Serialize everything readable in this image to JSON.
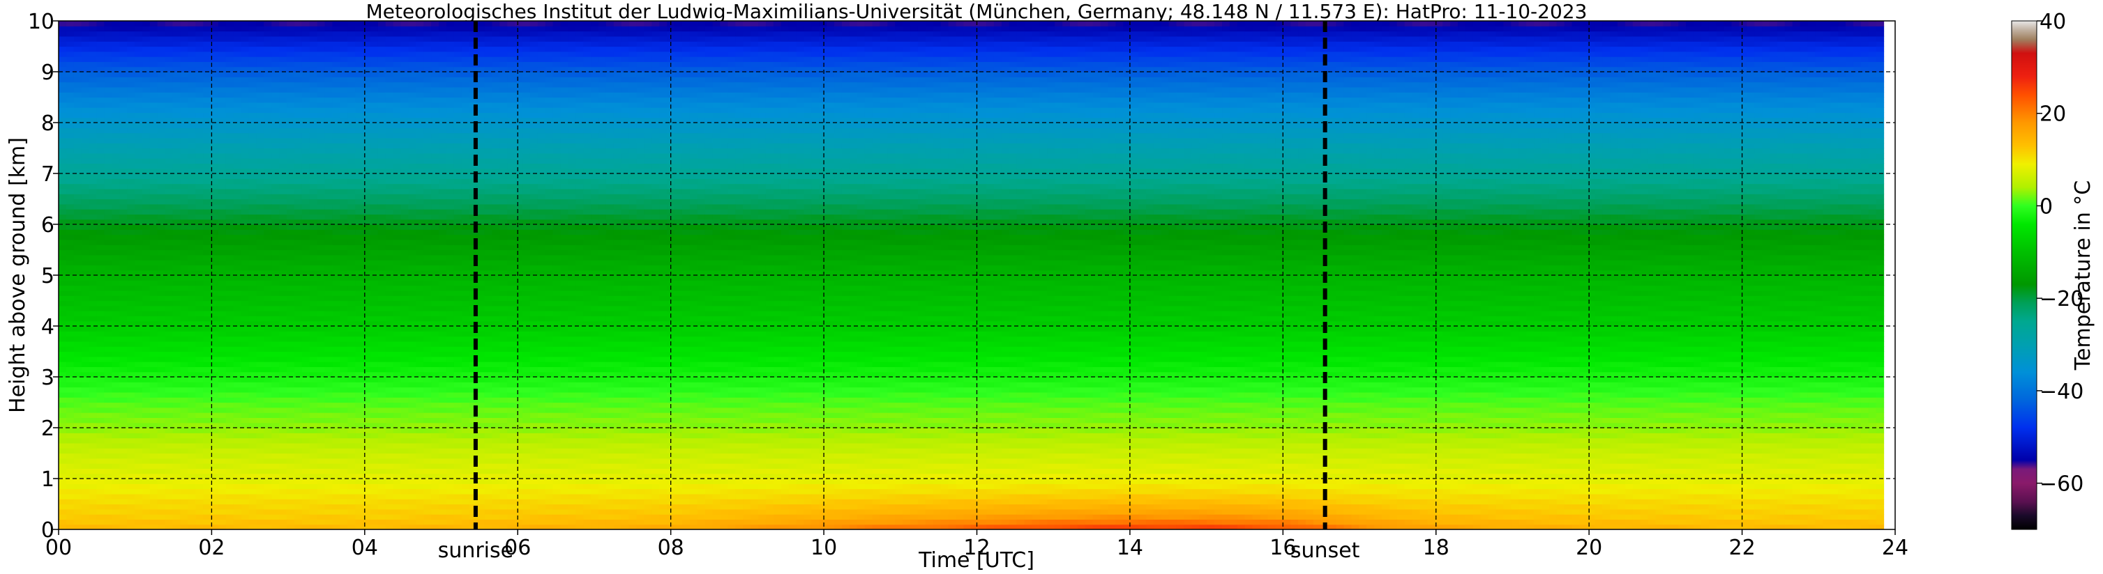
{
  "chart_data": {
    "type": "heatmap",
    "title": "Meteorologisches Institut der Ludwig-Maximilians-Universität (München, Germany; 48.148 N / 11.573 E):    HatPro: 11-10-2023",
    "xlabel": "Time [UTC]",
    "ylabel": "Height above ground [km]",
    "colorbar_label": "Temperature in °C",
    "xlim": [
      0,
      24
    ],
    "ylim": [
      0,
      10
    ],
    "clim": [
      -70,
      40
    ],
    "x_ticks": [
      0,
      2,
      4,
      6,
      8,
      10,
      12,
      14,
      16,
      18,
      20,
      22,
      24
    ],
    "x_tick_labels": [
      "00",
      "02",
      "04",
      "06",
      "08",
      "10",
      "12",
      "14",
      "16",
      "18",
      "20",
      "22",
      "24"
    ],
    "y_ticks": [
      0,
      1,
      2,
      3,
      4,
      5,
      6,
      7,
      8,
      9,
      10
    ],
    "y_tick_labels": [
      "0",
      "1",
      "2",
      "3",
      "4",
      "5",
      "6",
      "7",
      "8",
      "9",
      "10"
    ],
    "colorbar_ticks": [
      40,
      20,
      0,
      -20,
      -40,
      -60
    ],
    "colorbar_tick_labels": [
      "40",
      "20",
      "0",
      "−20",
      "−40",
      "−60"
    ],
    "grid": true,
    "data_end_hour": 23.85,
    "time_hours": [
      0,
      2,
      4,
      6,
      8,
      9,
      10,
      11,
      12,
      13,
      14,
      15,
      16,
      17,
      18,
      20,
      22,
      23.85
    ],
    "height_km": [
      0,
      0.25,
      0.5,
      1,
      1.5,
      2,
      2.5,
      3,
      3.5,
      4,
      5,
      6,
      6.5,
      7,
      7.5,
      8,
      8.5,
      9,
      9.5,
      10
    ],
    "surface_temperature_c": [
      14,
      14,
      14,
      15,
      16,
      18,
      20,
      22,
      24,
      26,
      27,
      27,
      25,
      20,
      17,
      15,
      14,
      14
    ],
    "temperature_profile_c": [
      14,
      12,
      11,
      8,
      6,
      3,
      1,
      -2,
      -5,
      -8,
      -12,
      -18,
      -22,
      -26,
      -30,
      -34,
      -38,
      -43,
      -49,
      -56
    ],
    "events": [
      {
        "label": "sunrise",
        "hour": 5.45
      },
      {
        "label": "sunset",
        "hour": 16.55
      }
    ],
    "colormap": [
      {
        "value": -70,
        "color": "#000000"
      },
      {
        "value": -67,
        "color": "#1a0a2a"
      },
      {
        "value": -64,
        "color": "#5a1050"
      },
      {
        "value": -60,
        "color": "#8a1a6a"
      },
      {
        "value": -57,
        "color": "#7a1a7a"
      },
      {
        "value": -55,
        "color": "#0000aa"
      },
      {
        "value": -48,
        "color": "#0030ee"
      },
      {
        "value": -42,
        "color": "#0066dd"
      },
      {
        "value": -36,
        "color": "#0090d8"
      },
      {
        "value": -30,
        "color": "#00a0b0"
      },
      {
        "value": -25,
        "color": "#00a890"
      },
      {
        "value": -21,
        "color": "#00a058"
      },
      {
        "value": -17,
        "color": "#009800"
      },
      {
        "value": -10,
        "color": "#00c000"
      },
      {
        "value": -4,
        "color": "#00e800"
      },
      {
        "value": 0,
        "color": "#30ff20"
      },
      {
        "value": 4,
        "color": "#b0f000"
      },
      {
        "value": 9,
        "color": "#f0f000"
      },
      {
        "value": 13,
        "color": "#ffc000"
      },
      {
        "value": 18,
        "color": "#ff9800"
      },
      {
        "value": 24,
        "color": "#ff5000"
      },
      {
        "value": 28,
        "color": "#ee2010"
      },
      {
        "value": 33,
        "color": "#d01010"
      },
      {
        "value": 36,
        "color": "#a08060"
      },
      {
        "value": 38,
        "color": "#c0b0a0"
      },
      {
        "value": 40,
        "color": "#e8e8e8"
      }
    ]
  }
}
